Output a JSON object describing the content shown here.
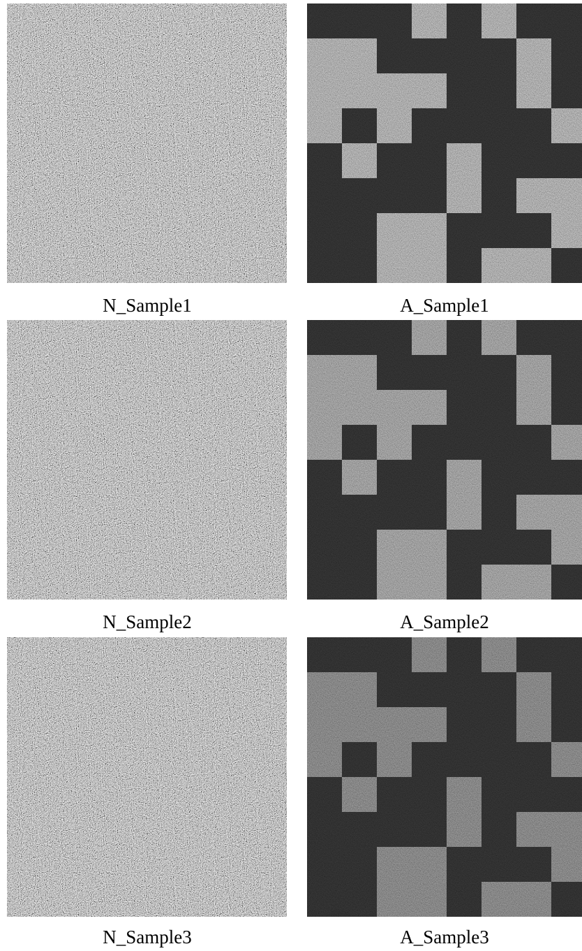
{
  "panels": [
    {
      "label": "N_Sample1"
    },
    {
      "label": "A_Sample1"
    },
    {
      "label": "N_Sample2"
    },
    {
      "label": "A_Sample2"
    },
    {
      "label": "N_Sample3"
    },
    {
      "label": "A_Sample3"
    }
  ]
}
